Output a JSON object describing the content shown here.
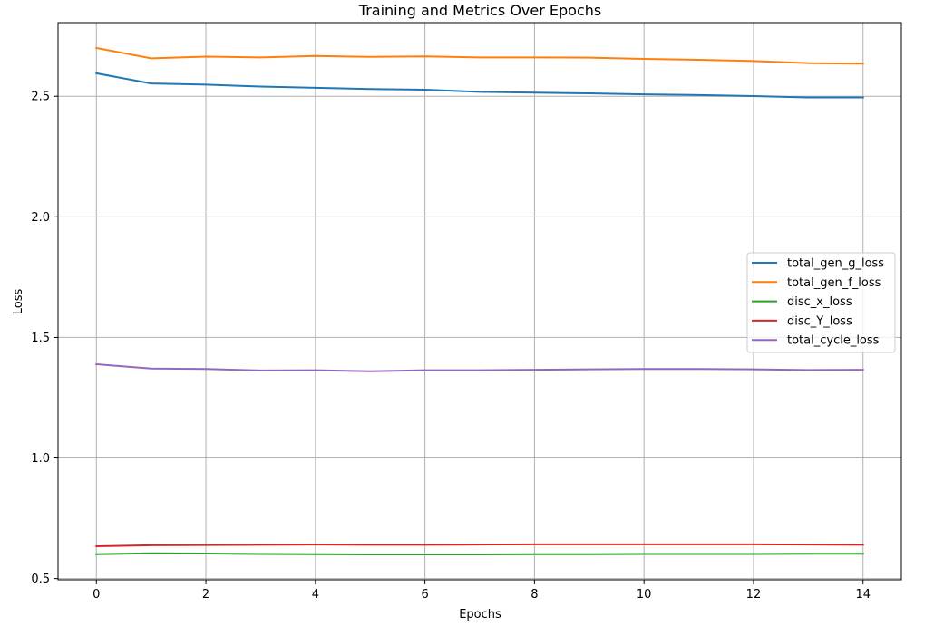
{
  "chart_data": {
    "type": "line",
    "title": "Training and  Metrics Over Epochs",
    "xlabel": "Epochs",
    "ylabel": "Loss",
    "xlim": [
      -0.7,
      14.7
    ],
    "ylim": [
      0.495,
      2.805
    ],
    "xticks": [
      0,
      2,
      4,
      6,
      8,
      10,
      12,
      14
    ],
    "yticks": [
      0.5,
      1.0,
      1.5,
      2.0,
      2.5
    ],
    "ytick_labels": [
      "0.5",
      "1.0",
      "1.5",
      "2.0",
      "2.5"
    ],
    "grid": true,
    "legend_position": "center-right",
    "x": [
      0,
      1,
      2,
      3,
      4,
      5,
      6,
      7,
      8,
      9,
      10,
      11,
      12,
      13,
      14
    ],
    "series": [
      {
        "name": "total_gen_g_loss",
        "color": "#1f77b4",
        "values": [
          2.595,
          2.553,
          2.548,
          2.54,
          2.535,
          2.53,
          2.527,
          2.518,
          2.515,
          2.512,
          2.508,
          2.505,
          2.501,
          2.495,
          2.495
        ]
      },
      {
        "name": "total_gen_f_loss",
        "color": "#ff7f0e",
        "values": [
          2.7,
          2.657,
          2.664,
          2.661,
          2.667,
          2.663,
          2.665,
          2.661,
          2.661,
          2.66,
          2.655,
          2.651,
          2.646,
          2.637,
          2.635
        ]
      },
      {
        "name": "disc_x_loss",
        "color": "#2ca02c",
        "values": [
          0.601,
          0.605,
          0.604,
          0.602,
          0.601,
          0.6,
          0.6,
          0.6,
          0.601,
          0.601,
          0.602,
          0.602,
          0.602,
          0.603,
          0.603
        ]
      },
      {
        "name": "disc_Y_loss",
        "color": "#d62728",
        "values": [
          0.634,
          0.638,
          0.639,
          0.64,
          0.641,
          0.64,
          0.64,
          0.641,
          0.642,
          0.642,
          0.642,
          0.642,
          0.642,
          0.641,
          0.64
        ]
      },
      {
        "name": "total_cycle_loss",
        "color": "#9467bd",
        "values": [
          1.389,
          1.371,
          1.369,
          1.363,
          1.364,
          1.36,
          1.364,
          1.364,
          1.366,
          1.368,
          1.369,
          1.369,
          1.368,
          1.365,
          1.366
        ]
      }
    ]
  }
}
